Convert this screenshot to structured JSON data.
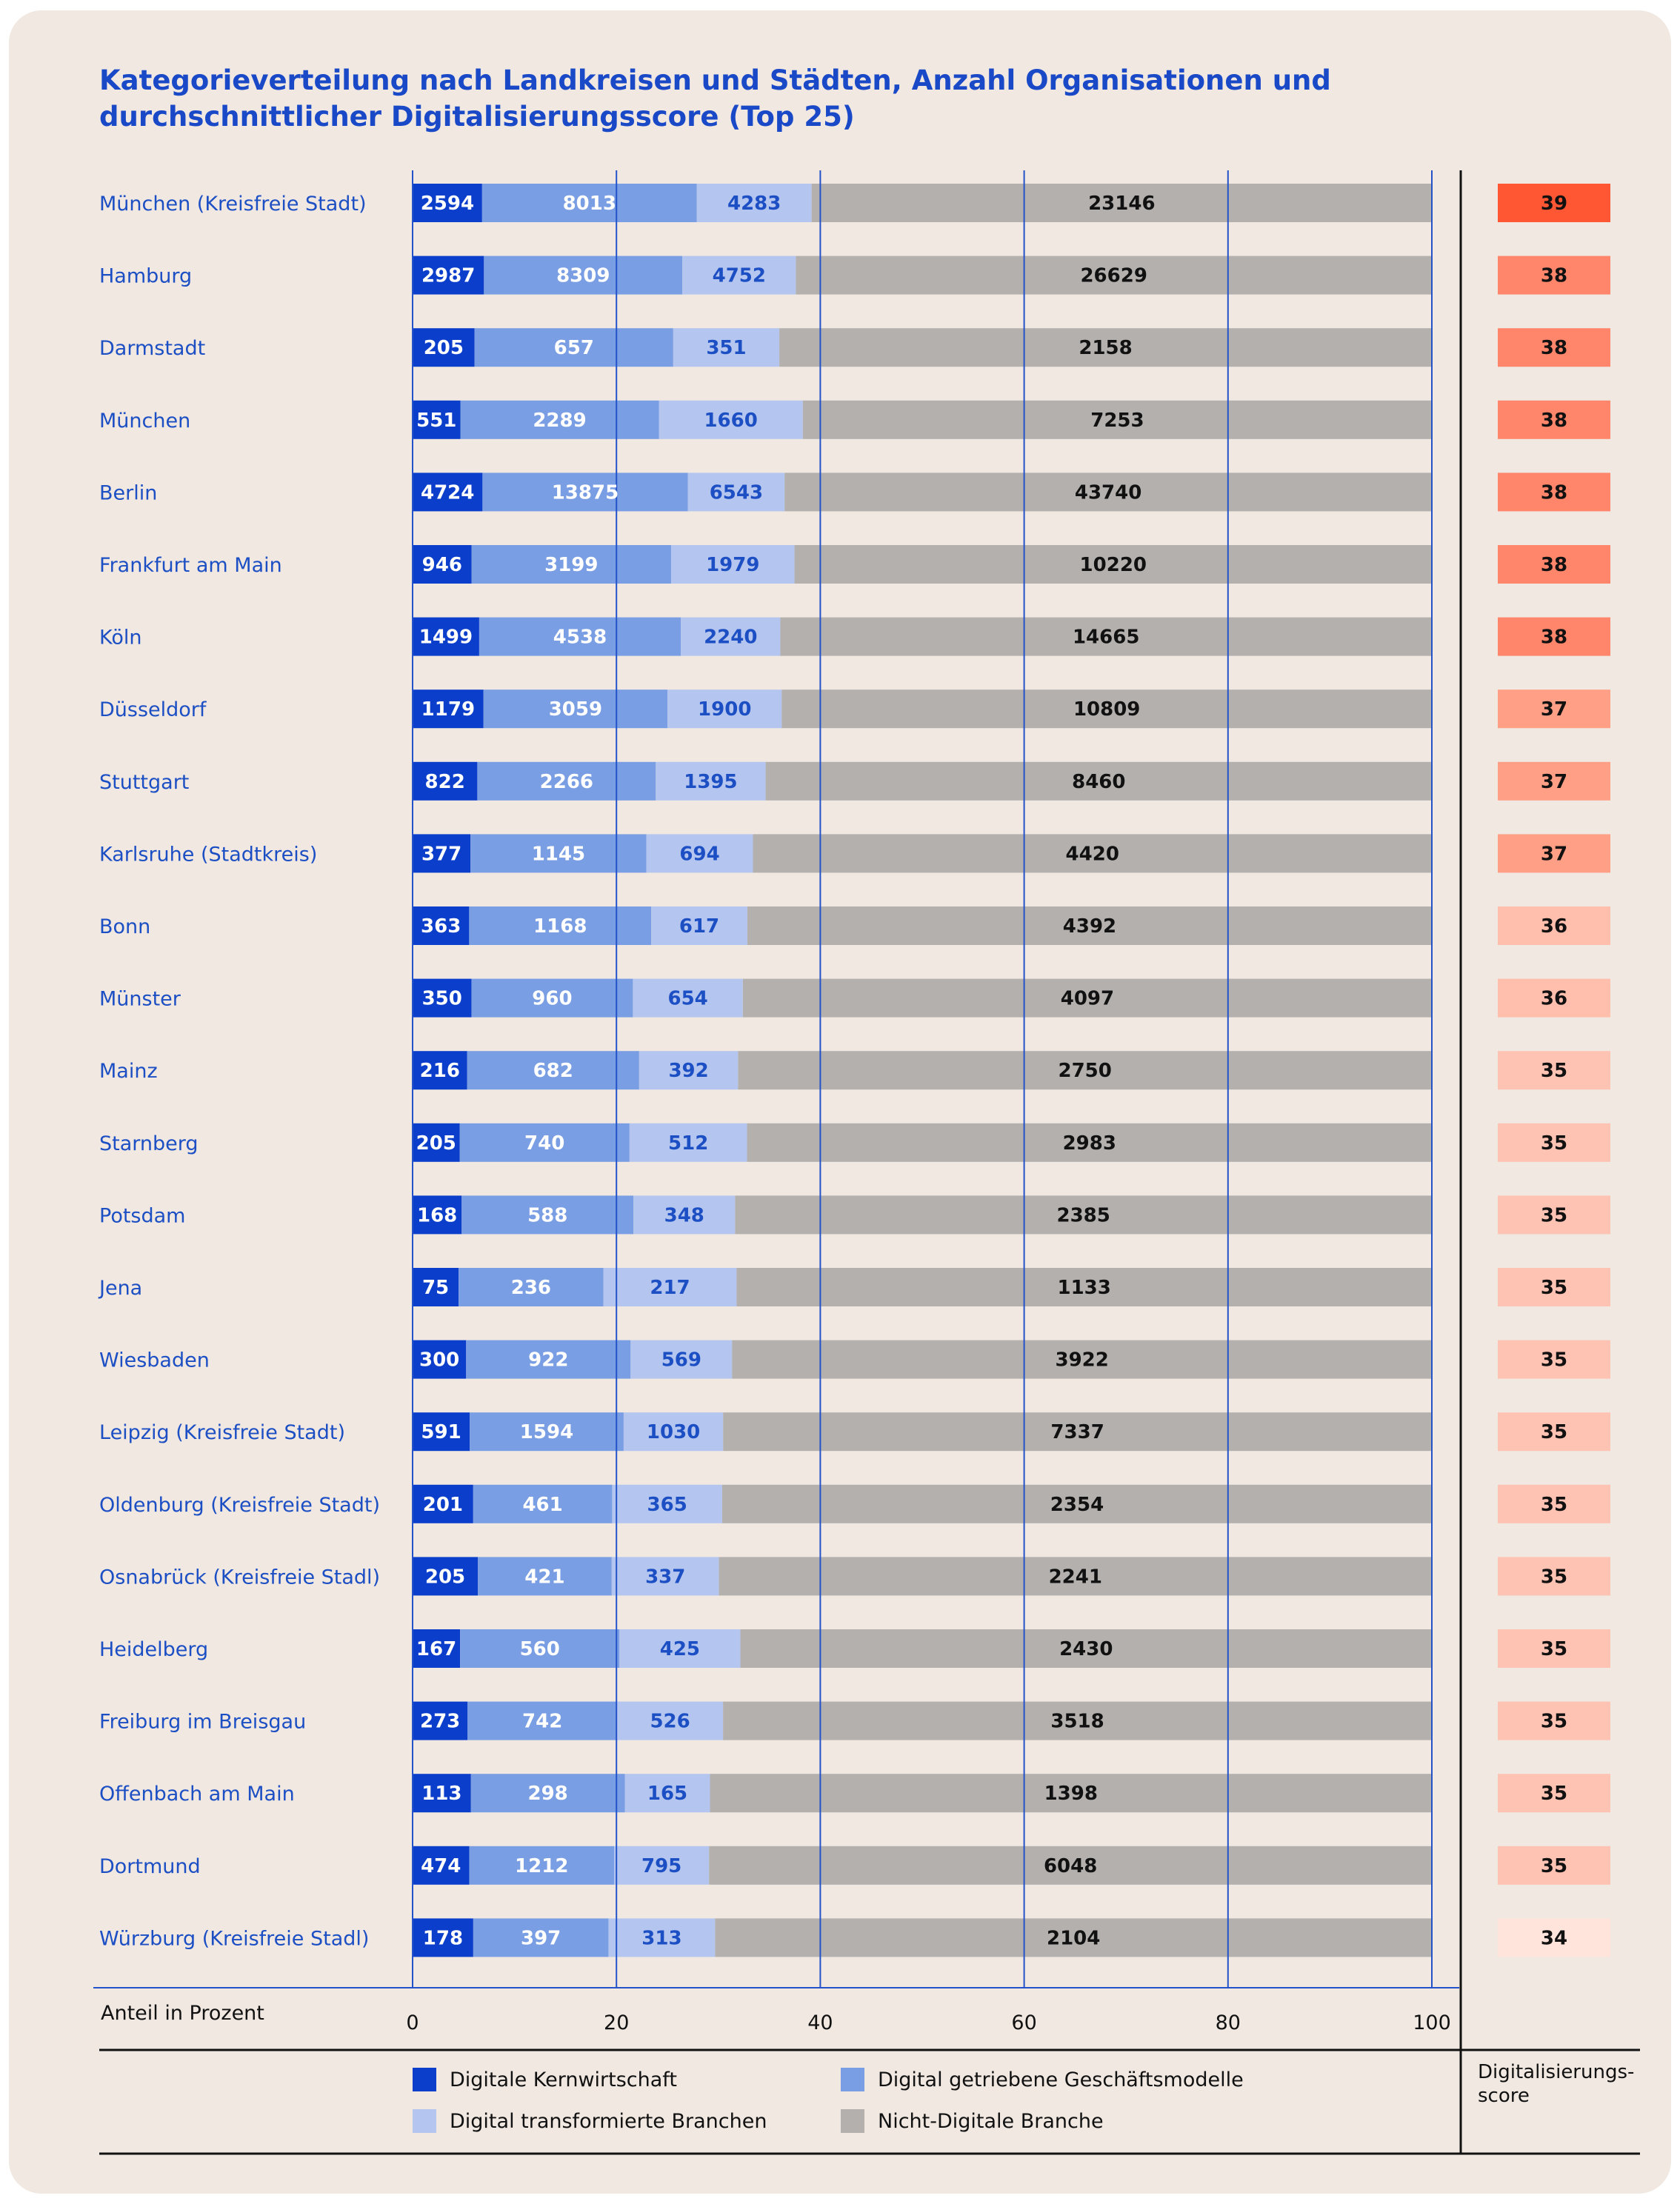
{
  "title": "Kategorieverteilung nach Landkreisen und Städten, Anzahl Organisationen und durchschnittlicher Digitalisierungsscore (Top 25)",
  "xlabel": "Anteil in Prozent",
  "score_label": "Digitalisierungs-\nscore",
  "colors": {
    "Digitale Kernwirtschaft": "#0b3fcb",
    "Digital getriebene Geschäftsmodelle": "#7a9ee3",
    "Digital transformierte Branchen": "#b4c6ef",
    "Nicht-Digitale Branche": "#b3b0ae",
    "gridline": "#2352c9",
    "score_39": "#ff5733",
    "score_38": "#ff866b",
    "score_37": "#ff9f86",
    "score_36": "#ffbfac",
    "score_35": "#ffc3b3",
    "score_34": "#ffe4dc"
  },
  "legend": [
    {
      "label": "Digitale Kernwirtschaft",
      "color": "#0b3fcb"
    },
    {
      "label": "Digital getriebene Geschäftsmodelle",
      "color": "#7a9ee3"
    },
    {
      "label": "Digital transformierte Branchen",
      "color": "#b4c6ef"
    },
    {
      "label": "Nicht-Digitale Branche",
      "color": "#b3b0ae"
    }
  ],
  "chart_data": {
    "type": "bar",
    "stacked": "percent",
    "orientation": "horizontal",
    "title": "Kategorieverteilung nach Landkreisen und Städten, Anzahl Organisationen und durchschnittlicher Digitalisierungsscore (Top 25)",
    "xlabel": "Anteil in Prozent",
    "xlim": [
      0,
      100
    ],
    "xticks": [
      0,
      20,
      40,
      60,
      80,
      100
    ],
    "grid": true,
    "legend_position": "bottom",
    "categories": [
      "München (Kreisfreie Stadt)",
      "Hamburg",
      "Darmstadt",
      "München",
      "Berlin",
      "Frankfurt am Main",
      "Köln",
      "Düsseldorf",
      "Stuttgart",
      "Karlsruhe (Stadtkreis)",
      "Bonn",
      "Münster",
      "Mainz",
      "Starnberg",
      "Potsdam",
      "Jena",
      "Wiesbaden",
      "Leipzig (Kreisfreie Stadt)",
      "Oldenburg (Kreisfreie Stadt)",
      "Osnabrück (Kreisfreie Stadl)",
      "Heidelberg",
      "Freiburg im Breisgau",
      "Offenbach am Main",
      "Dortmund",
      "Würzburg (Kreisfreie Stadl)"
    ],
    "series": [
      {
        "name": "Digitale Kernwirtschaft",
        "values": [
          2594,
          2987,
          205,
          551,
          4724,
          946,
          1499,
          1179,
          822,
          377,
          363,
          350,
          216,
          205,
          168,
          75,
          300,
          591,
          201,
          205,
          167,
          273,
          113,
          474,
          178
        ]
      },
      {
        "name": "Digital getriebene Geschäftsmodelle",
        "values": [
          8013,
          8309,
          657,
          2289,
          13875,
          3199,
          4538,
          3059,
          2266,
          1145,
          1168,
          960,
          682,
          740,
          588,
          236,
          922,
          1594,
          461,
          421,
          560,
          742,
          298,
          1212,
          397
        ]
      },
      {
        "name": "Digital transformierte Branchen",
        "values": [
          4283,
          4752,
          351,
          1660,
          6543,
          1979,
          2240,
          1900,
          1395,
          694,
          617,
          654,
          392,
          512,
          348,
          217,
          569,
          1030,
          365,
          337,
          425,
          526,
          165,
          795,
          313
        ]
      },
      {
        "name": "Nicht-Digitale Branche",
        "values": [
          23146,
          26629,
          2158,
          7253,
          43740,
          10220,
          14665,
          10809,
          8460,
          4420,
          4392,
          4097,
          2750,
          2983,
          2385,
          1133,
          3922,
          7337,
          2354,
          2241,
          2430,
          3518,
          1398,
          6048,
          2104
        ]
      }
    ],
    "scores": [
      39,
      38,
      38,
      38,
      38,
      38,
      38,
      37,
      37,
      37,
      36,
      36,
      35,
      35,
      35,
      35,
      35,
      35,
      35,
      35,
      35,
      35,
      35,
      35,
      34
    ]
  }
}
